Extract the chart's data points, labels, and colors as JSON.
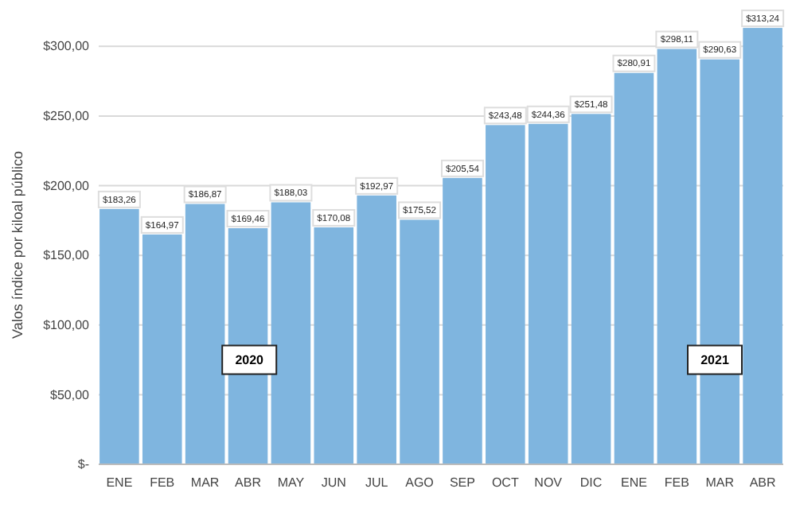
{
  "chart_data": {
    "type": "bar",
    "ylabel": "Valos índice por kiloal público",
    "categories": [
      "ENE",
      "FEB",
      "MAR",
      "ABR",
      "MAY",
      "JUN",
      "JUL",
      "AGO",
      "SEP",
      "OCT",
      "NOV",
      "DIC",
      "ENE",
      "FEB",
      "MAR",
      "ABR"
    ],
    "values": [
      183.26,
      164.97,
      186.87,
      169.46,
      188.03,
      170.08,
      192.97,
      175.52,
      205.54,
      243.48,
      244.36,
      251.48,
      280.91,
      298.11,
      290.63,
      313.24
    ],
    "value_labels": [
      "$183,26",
      "$164,97",
      "$186,87",
      "$169,46",
      "$188,03",
      "$170,08",
      "$192,97",
      "$175,52",
      "$205,54",
      "$243,48",
      "$244,36",
      "$251,48",
      "$280,91",
      "$298,11",
      "$290,63",
      "$313,24"
    ],
    "color": "#7fb5df",
    "ylim": [
      0,
      315
    ],
    "yticks": [
      {
        "value": 0,
        "label": "$-"
      },
      {
        "value": 50,
        "label": "$50,00"
      },
      {
        "value": 100,
        "label": "$100,00"
      },
      {
        "value": 150,
        "label": "$150,00"
      },
      {
        "value": 200,
        "label": "$200,00"
      },
      {
        "value": 250,
        "label": "$250,00"
      },
      {
        "value": 300,
        "label": "$300,00"
      }
    ],
    "grid": "y",
    "annotations": [
      "2020",
      "2021"
    ]
  }
}
